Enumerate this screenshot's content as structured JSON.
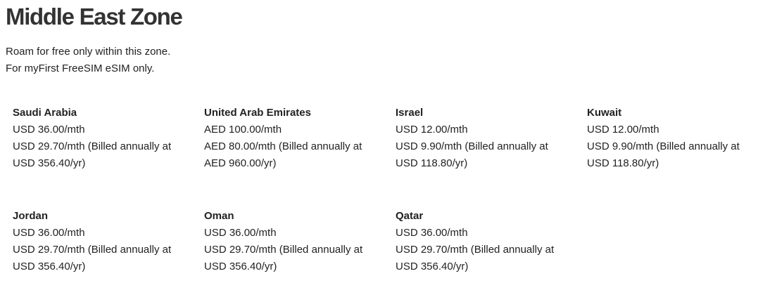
{
  "title": "Middle East Zone",
  "intro": [
    "Roam for free only within this zone.",
    "For myFirst FreeSIM eSIM only."
  ],
  "countries": [
    {
      "name": "Saudi Arabia",
      "monthly": "USD 36.00/mth",
      "annual": "USD 29.70/mth (Billed annually at USD 356.40/yr)"
    },
    {
      "name": "United Arab Emirates",
      "monthly": "AED 100.00/mth",
      "annual": "AED 80.00/mth (Billed annually at AED 960.00/yr)"
    },
    {
      "name": "Israel",
      "monthly": "USD 12.00/mth",
      "annual": "USD 9.90/mth (Billed annually at USD 118.80/yr)"
    },
    {
      "name": "Kuwait",
      "monthly": "USD 12.00/mth",
      "annual": "USD 9.90/mth (Billed annually at USD 118.80/yr)"
    },
    {
      "name": "Jordan",
      "monthly": "USD 36.00/mth",
      "annual": "USD 29.70/mth (Billed annually at USD 356.40/yr)"
    },
    {
      "name": "Oman",
      "monthly": "USD 36.00/mth",
      "annual": "USD 29.70/mth (Billed annually at USD 356.40/yr)"
    },
    {
      "name": "Qatar",
      "monthly": "USD 36.00/mth",
      "annual": "USD 29.70/mth (Billed annually at USD 356.40/yr)"
    }
  ]
}
